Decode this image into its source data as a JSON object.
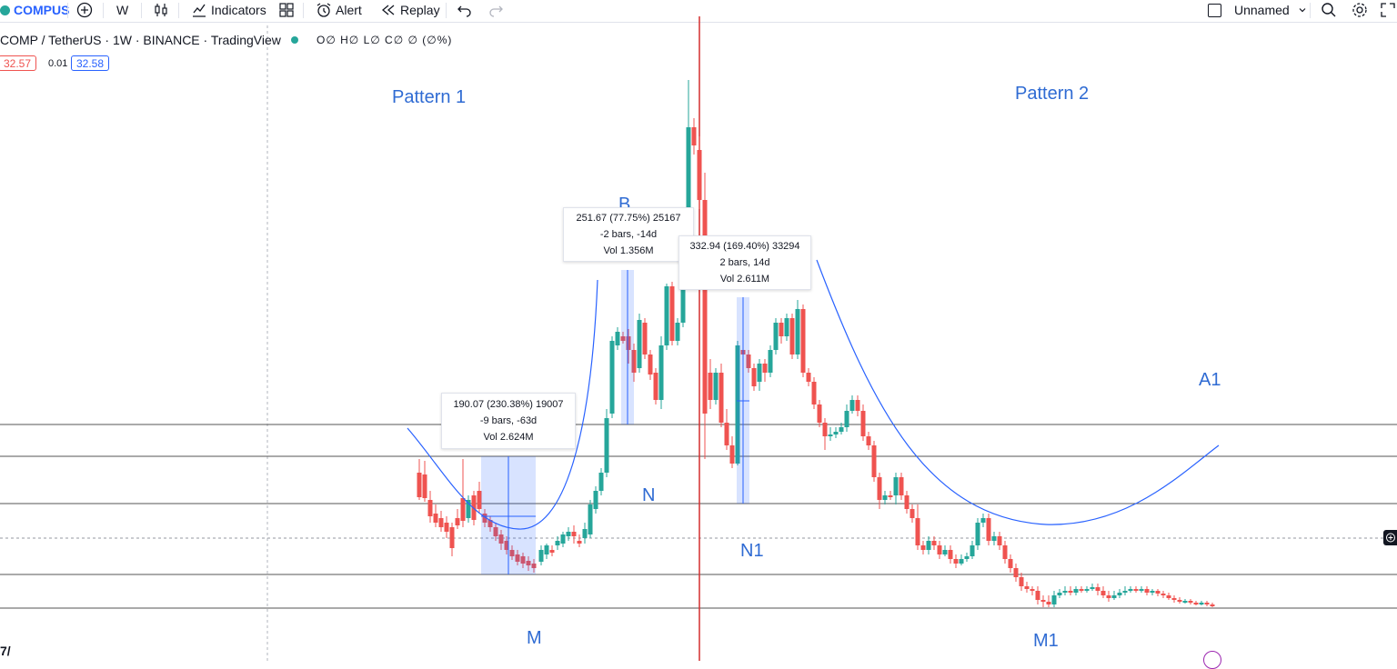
{
  "toolbar": {
    "symbol": "COMPUS",
    "interval": "W",
    "indicators_label": "Indicators",
    "alert_label": "Alert",
    "replay_label": "Replay",
    "layout_name": "Unnamed"
  },
  "legend": {
    "title": "COMP / TetherUS · 1W · BINANCE · TradingView",
    "ohlc": "O∅ H∅ L∅ C∅ ∅ (∅%)",
    "bid": "32.57",
    "spread": "0.01",
    "ask": "32.58"
  },
  "annotations": {
    "pattern1": "Pattern 1",
    "pattern2": "Pattern 2",
    "a1": "A1",
    "b": "B",
    "n": "N",
    "n1": "N1",
    "m": "M",
    "m1": "M1"
  },
  "measures": [
    {
      "line1": "190.07 (230.38%) 19007",
      "line2": "-9 bars, -63d",
      "line3": "Vol 2.624M"
    },
    {
      "line1": "251.67 (77.75%) 25167",
      "line2": "-2 bars, -14d",
      "line3": "Vol 1.356M"
    },
    {
      "line1": "332.94 (169.40%) 33294",
      "line2": "2 bars, 14d",
      "line3": "Vol 2.611M"
    }
  ],
  "colors": {
    "up": "#26a69a",
    "down": "#ef5350",
    "drawing": "#2962ff",
    "label": "#2f6bd3"
  }
}
